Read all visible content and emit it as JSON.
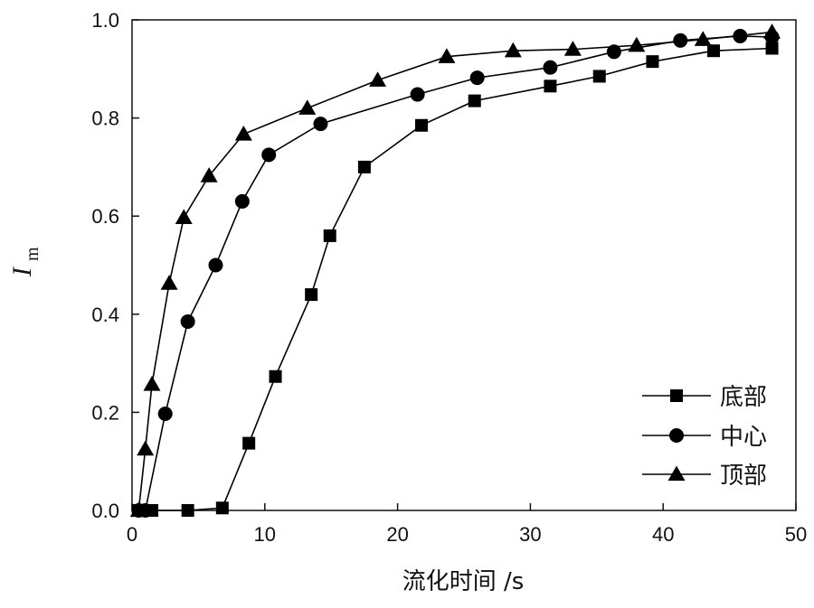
{
  "chart_data": {
    "type": "line",
    "xlabel": "流化时间 /s",
    "ylabel_main": "I",
    "ylabel_sub": "m",
    "xlim": [
      0,
      50
    ],
    "ylim": [
      0,
      1.0
    ],
    "x_ticks": [
      0,
      10,
      20,
      30,
      40,
      50
    ],
    "y_ticks": [
      0.0,
      0.2,
      0.4,
      0.6,
      0.8,
      1.0
    ],
    "x_tick_labels": [
      "0",
      "10",
      "20",
      "30",
      "40",
      "50"
    ],
    "y_tick_labels": [
      "0.0",
      "0.2",
      "0.4",
      "0.6",
      "0.8",
      "1.0"
    ],
    "grid": false,
    "legend_position": "bottom-right",
    "series": [
      {
        "name": "底部",
        "marker": "square",
        "points": [
          [
            0.5,
            0.0
          ],
          [
            1.5,
            0.0
          ],
          [
            4.2,
            0.0
          ],
          [
            6.8,
            0.005
          ],
          [
            8.8,
            0.137
          ],
          [
            10.8,
            0.273
          ],
          [
            13.5,
            0.44
          ],
          [
            14.9,
            0.56
          ],
          [
            17.5,
            0.7
          ],
          [
            21.8,
            0.785
          ],
          [
            25.8,
            0.835
          ],
          [
            31.5,
            0.865
          ],
          [
            35.2,
            0.885
          ],
          [
            39.2,
            0.915
          ],
          [
            43.8,
            0.937
          ],
          [
            48.2,
            0.942
          ]
        ]
      },
      {
        "name": "中心",
        "marker": "circle",
        "points": [
          [
            0.5,
            0.0
          ],
          [
            1.0,
            0.0
          ],
          [
            2.5,
            0.197
          ],
          [
            4.2,
            0.385
          ],
          [
            6.3,
            0.5
          ],
          [
            8.3,
            0.63
          ],
          [
            10.3,
            0.725
          ],
          [
            14.2,
            0.788
          ],
          [
            21.5,
            0.848
          ],
          [
            26.0,
            0.882
          ],
          [
            31.5,
            0.903
          ],
          [
            36.3,
            0.935
          ],
          [
            41.3,
            0.958
          ],
          [
            45.8,
            0.967
          ],
          [
            48.2,
            0.965
          ]
        ]
      },
      {
        "name": "顶部",
        "marker": "triangle",
        "points": [
          [
            0.5,
            0.0
          ],
          [
            1.0,
            0.125
          ],
          [
            1.5,
            0.257
          ],
          [
            2.8,
            0.463
          ],
          [
            3.9,
            0.597
          ],
          [
            5.8,
            0.682
          ],
          [
            8.4,
            0.767
          ],
          [
            13.2,
            0.82
          ],
          [
            18.5,
            0.877
          ],
          [
            23.7,
            0.925
          ],
          [
            28.7,
            0.937
          ],
          [
            33.2,
            0.94
          ],
          [
            38.0,
            0.948
          ],
          [
            43.0,
            0.96
          ],
          [
            48.2,
            0.975
          ]
        ]
      }
    ]
  }
}
